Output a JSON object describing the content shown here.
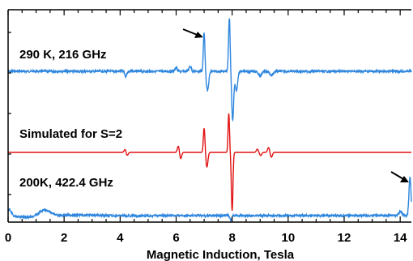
{
  "chart_data": {
    "type": "line",
    "xlabel": "Magnetic Induction, Tesla",
    "ylabel": "",
    "xlim": [
      0,
      14.4
    ],
    "x_ticks": [
      0,
      2,
      4,
      6,
      8,
      10,
      12,
      14
    ],
    "grid": false,
    "series": [
      {
        "name": "290 K, 216 GHz",
        "color": "#2e86de",
        "baseline": 88,
        "features": [
          {
            "x": 4.2,
            "amp": -6,
            "width": 0.05
          },
          {
            "x": 6.0,
            "amp": 5,
            "width": 0.05
          },
          {
            "x": 6.5,
            "amp": 6,
            "width": 0.06
          },
          {
            "x": 7.0,
            "amp": 48,
            "width": 0.04
          },
          {
            "x": 7.12,
            "amp": -24,
            "width": 0.06
          },
          {
            "x": 7.9,
            "amp": 66,
            "width": 0.04
          },
          {
            "x": 8.02,
            "amp": -60,
            "width": 0.05
          },
          {
            "x": 8.15,
            "amp": -24,
            "width": 0.06
          },
          {
            "x": 9.0,
            "amp": -6,
            "width": 0.08
          },
          {
            "x": 9.4,
            "amp": -5,
            "width": 0.08
          }
        ]
      },
      {
        "name": "Simulated for S=2",
        "color": "#e01010",
        "baseline": 188,
        "features": [
          {
            "x": 4.18,
            "amp": 4,
            "width": 0.05
          },
          {
            "x": 4.25,
            "amp": -4,
            "width": 0.05
          },
          {
            "x": 6.08,
            "amp": 8,
            "width": 0.05
          },
          {
            "x": 6.16,
            "amp": -8,
            "width": 0.05
          },
          {
            "x": 7.0,
            "amp": 30,
            "width": 0.04
          },
          {
            "x": 7.1,
            "amp": -18,
            "width": 0.05
          },
          {
            "x": 7.88,
            "amp": 48,
            "width": 0.035
          },
          {
            "x": 8.0,
            "amp": -72,
            "width": 0.04
          },
          {
            "x": 8.9,
            "amp": 4,
            "width": 0.05
          },
          {
            "x": 9.02,
            "amp": -4,
            "width": 0.05
          },
          {
            "x": 9.3,
            "amp": 6,
            "width": 0.05
          },
          {
            "x": 9.4,
            "amp": -6,
            "width": 0.05
          }
        ]
      },
      {
        "name": "200K, 422.4 GHz",
        "color": "#2e86de",
        "baseline": 266,
        "features": [
          {
            "x": 0.05,
            "amp": 8,
            "width": 0.1
          },
          {
            "x": 1.3,
            "amp": 8,
            "width": 0.3
          },
          {
            "x": 7.95,
            "amp": -6,
            "width": 0.05
          },
          {
            "x": 14.0,
            "amp": 5,
            "width": 0.08
          },
          {
            "x": 14.35,
            "amp": 48,
            "width": 0.05
          }
        ]
      }
    ],
    "annotations": [
      "arrow at ~7.0 T (290 K trace)",
      "arrow at ~14.4 T (200K trace)"
    ]
  }
}
